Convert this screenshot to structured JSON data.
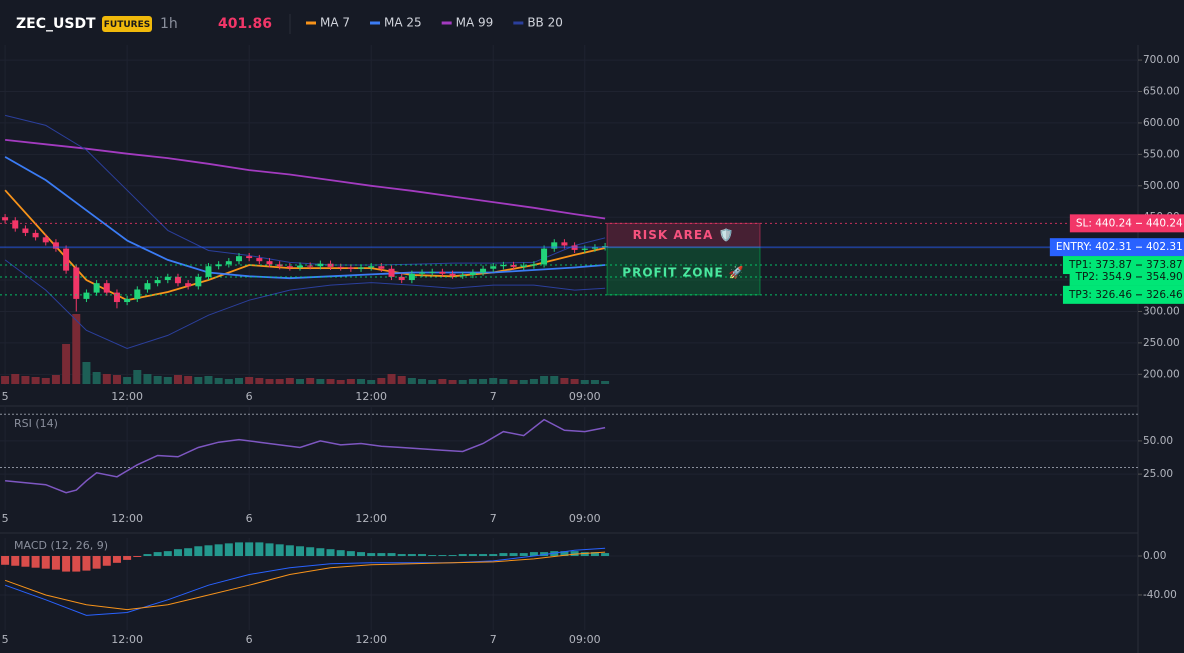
{
  "header": {
    "symbol": "ZEC_USDT",
    "badge": "FUTURES",
    "interval": "1h",
    "price": 401.86
  },
  "chart_data": [
    {
      "type": "candlestick",
      "xlim": [
        -0.5,
        111.4
      ],
      "xticks": [
        {
          "value": 0,
          "label": "5"
        },
        {
          "value": 12,
          "label": "12:00"
        },
        {
          "value": 24,
          "label": "6"
        },
        {
          "value": 36,
          "label": "12:00"
        },
        {
          "value": 48,
          "label": "7"
        },
        {
          "value": 57,
          "label": "09:00"
        }
      ],
      "ylim": [
        183,
        724
      ],
      "yticks": [
        {
          "value": 700,
          "label": "700.00"
        },
        {
          "value": 650,
          "label": "650.00"
        },
        {
          "value": 600,
          "label": "600.00"
        },
        {
          "value": 550,
          "label": "550.00"
        },
        {
          "value": 500,
          "label": "500.00"
        },
        {
          "value": 450,
          "label": "450.00"
        },
        {
          "value": 400,
          "label": "400.00"
        },
        {
          "value": 350,
          "label": "350.00"
        },
        {
          "value": 300,
          "label": "300.00"
        },
        {
          "value": 250,
          "label": "250.00"
        },
        {
          "value": 200,
          "label": "200.00"
        }
      ],
      "up_color": "#22d37a",
      "down_color": "#f23668",
      "open": [
        450,
        445,
        432,
        425,
        418,
        410,
        400,
        370,
        320,
        330,
        345,
        330,
        315,
        320,
        335,
        345,
        350,
        355,
        345,
        340,
        355,
        372,
        375,
        380,
        388,
        385,
        380,
        375,
        372,
        370,
        373,
        372,
        376,
        371,
        370,
        368,
        370,
        372,
        368,
        355,
        350,
        360,
        362,
        363,
        360,
        357,
        358,
        362,
        368,
        372,
        374,
        371,
        373,
        375,
        400,
        410,
        405,
        398,
        400,
        402
      ],
      "high": [
        455,
        450,
        437,
        430,
        423,
        415,
        405,
        375,
        335,
        350,
        350,
        335,
        325,
        340,
        350,
        355,
        360,
        360,
        350,
        360,
        377,
        380,
        385,
        393,
        393,
        390,
        385,
        380,
        377,
        378,
        378,
        381,
        381,
        376,
        375,
        375,
        377,
        377,
        373,
        360,
        365,
        367,
        368,
        368,
        365,
        363,
        367,
        373,
        377,
        379,
        379,
        378,
        380,
        405,
        415,
        415,
        410,
        405,
        407,
        409
      ],
      "low": [
        440,
        427,
        420,
        413,
        405,
        395,
        360,
        300,
        315,
        325,
        325,
        305,
        310,
        315,
        330,
        340,
        345,
        340,
        335,
        335,
        350,
        367,
        370,
        375,
        380,
        375,
        370,
        367,
        365,
        365,
        367,
        367,
        366,
        365,
        363,
        363,
        365,
        363,
        350,
        345,
        345,
        355,
        357,
        355,
        352,
        352,
        353,
        357,
        363,
        367,
        366,
        366,
        368,
        370,
        395,
        400,
        393,
        393,
        395,
        397
      ],
      "close": [
        445,
        432,
        425,
        418,
        410,
        400,
        365,
        320,
        330,
        345,
        330,
        315,
        320,
        335,
        345,
        350,
        355,
        345,
        340,
        355,
        372,
        375,
        380,
        388,
        385,
        380,
        375,
        372,
        370,
        373,
        372,
        376,
        371,
        370,
        368,
        370,
        372,
        368,
        355,
        350,
        360,
        362,
        363,
        360,
        357,
        358,
        362,
        368,
        372,
        374,
        371,
        373,
        375,
        400,
        410,
        405,
        398,
        400,
        402,
        404
      ],
      "volume": [
        8,
        10,
        8,
        7,
        6,
        9,
        40,
        70,
        22,
        12,
        10,
        9,
        7,
        14,
        10,
        8,
        7,
        9,
        8,
        7,
        8,
        6,
        5,
        6,
        7,
        6,
        5,
        5,
        6,
        5,
        6,
        5,
        5,
        4,
        5,
        5,
        4,
        6,
        10,
        8,
        6,
        5,
        4,
        5,
        4,
        4,
        5,
        5,
        6,
        5,
        4,
        4,
        5,
        8,
        8,
        6,
        5,
        4,
        4,
        3
      ],
      "series": [
        {
          "name": "MA 7",
          "color": "#f7931a",
          "x": [
            0,
            4,
            8,
            12,
            16,
            20,
            24,
            28,
            32,
            36,
            40,
            44,
            48,
            52,
            56,
            59
          ],
          "values": [
            493,
            421,
            350,
            318,
            331,
            350,
            374,
            369,
            369,
            369,
            358,
            356,
            362,
            374,
            390,
            401
          ]
        },
        {
          "name": "MA 25",
          "color": "#3b7cf5",
          "x": [
            0,
            4,
            8,
            12,
            16,
            20,
            24,
            28,
            32,
            36,
            40,
            44,
            48,
            52,
            56,
            59
          ],
          "values": [
            546,
            509,
            461,
            413,
            382,
            362,
            356,
            353,
            356,
            359,
            362,
            362,
            362,
            366,
            370,
            374
          ]
        },
        {
          "name": "MA 99",
          "color": "#a33bc0",
          "x": [
            0,
            4,
            8,
            12,
            16,
            20,
            24,
            28,
            32,
            36,
            40,
            44,
            48,
            52,
            56,
            59
          ],
          "values": [
            573,
            566,
            559,
            551,
            544,
            535,
            525,
            518,
            509,
            500,
            492,
            483,
            474,
            465,
            455,
            448
          ]
        },
        {
          "name": "BB 20",
          "color": "#2b3f9c",
          "x": [
            0,
            4,
            8,
            12,
            16,
            20,
            24,
            28,
            32,
            36,
            40,
            44,
            48,
            52,
            56,
            59
          ],
          "values": [
            612,
            596,
            557,
            493,
            429,
            397,
            389,
            378,
            374,
            374,
            375,
            377,
            377,
            378,
            405,
            417
          ],
          "lower": [
            382,
            334,
            270,
            241,
            262,
            294,
            318,
            334,
            342,
            346,
            342,
            337,
            342,
            342,
            334,
            337
          ]
        }
      ],
      "levels": [
        {
          "label": "SL: 440.24",
          "value": 440.24,
          "color": "#f23668"
        },
        {
          "label": "ENTRY: 402.31",
          "value": 402.31,
          "color": "#2962ff"
        },
        {
          "label": "TP1: 373.87",
          "value": 373.87,
          "color": "#00e676"
        },
        {
          "label": "TP2: 354.9",
          "value": 354.9,
          "axis_label": "354.90",
          "color": "#00e676"
        },
        {
          "label": "TP3: 326.46",
          "value": 326.46,
          "color": "#00e676"
        }
      ],
      "zones": [
        "RISK AREA 🛡️",
        "PROFIT ZONE 🚀"
      ]
    },
    {
      "type": "line",
      "title": "RSI (14)",
      "color": "#7e57c2",
      "ylim": [
        -2,
        77
      ],
      "yticks": [
        {
          "value": 50,
          "label": "50.00"
        },
        {
          "value": 25,
          "label": "25.00"
        }
      ],
      "bands": [
        30,
        70
      ],
      "x": [
        0,
        4,
        6,
        7,
        8,
        9,
        11,
        13,
        15,
        17,
        19,
        21,
        23,
        25,
        27,
        29,
        31,
        33,
        35,
        37,
        39,
        41,
        43,
        45,
        47,
        49,
        51,
        53,
        55,
        57,
        59
      ],
      "values": [
        20,
        17,
        11,
        13,
        20,
        26,
        23,
        32,
        39,
        38,
        45,
        49,
        51,
        49,
        47,
        45,
        50,
        47,
        48,
        46,
        45,
        44,
        43,
        42,
        48,
        57,
        54,
        66,
        58,
        57,
        60
      ]
    },
    {
      "type": "macd",
      "title": "MACD (12, 26, 9)",
      "ylim": [
        -76,
        18.5
      ],
      "yticks": [
        {
          "value": 0,
          "label": "0.00"
        },
        {
          "value": -40,
          "label": "-40.00"
        }
      ],
      "histogram": [
        -9,
        -10,
        -11,
        -12,
        -13,
        -14,
        -16,
        -16,
        -15,
        -13,
        -10,
        -7,
        -4,
        -1,
        2,
        4,
        5,
        7,
        8,
        10,
        11,
        12,
        13,
        14,
        14,
        14,
        13,
        12,
        11,
        10,
        9,
        8,
        7,
        6,
        5,
        4,
        3,
        3,
        3,
        2,
        2,
        2,
        1,
        1,
        1,
        2,
        2,
        2,
        2,
        3,
        3,
        3,
        4,
        4,
        5,
        5,
        5,
        4,
        4,
        3
      ],
      "pos_color": "#26a69a",
      "neg_color": "#ef5350",
      "series": [
        {
          "color": "#2962ff",
          "x": [
            0,
            4,
            8,
            12,
            16,
            20,
            24,
            28,
            32,
            36,
            40,
            44,
            48,
            52,
            56,
            59
          ],
          "values": [
            -30,
            -45,
            -61,
            -58,
            -45,
            -30,
            -19,
            -12,
            -8,
            -7,
            -7,
            -7,
            -5,
            0,
            6,
            8
          ]
        },
        {
          "color": "#f7931a",
          "x": [
            0,
            4,
            8,
            12,
            16,
            20,
            24,
            28,
            32,
            36,
            40,
            44,
            48,
            52,
            56,
            59
          ],
          "values": [
            -25,
            -40,
            -50,
            -55,
            -50,
            -40,
            -30,
            -19,
            -12,
            -9,
            -8,
            -7,
            -6,
            -3,
            2,
            4
          ]
        }
      ]
    }
  ]
}
